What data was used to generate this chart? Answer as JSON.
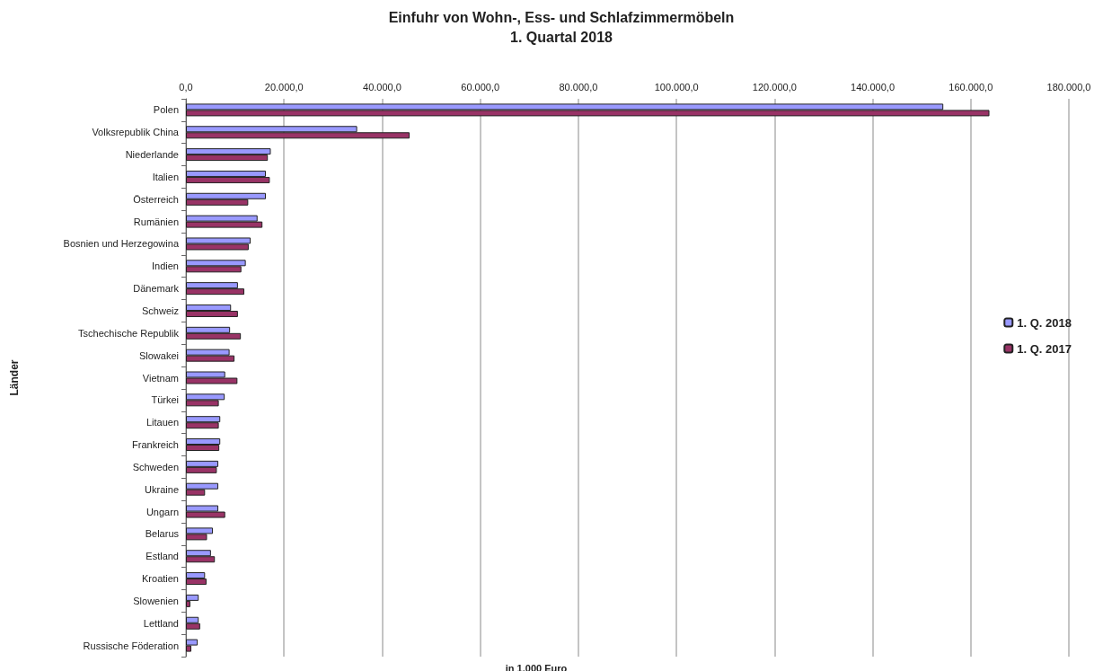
{
  "chart_data": {
    "type": "bar",
    "orientation": "horizontal",
    "title": "Einfuhr von Wohn-, Ess- und Schlafzimmermöbeln",
    "subtitle": "1. Quartal 2018",
    "xlabel": "in 1.000 Euro",
    "ylabel": "Länder",
    "categories": [
      "Polen",
      "Volksrepublik China",
      "Niederlande",
      "Italien",
      "Österreich",
      "Rumänien",
      "Bosnien und Herzegowina",
      "Indien",
      "Dänemark",
      "Schweiz",
      "Tschechische Republik",
      "Slowakei",
      "Vietnam",
      "Türkei",
      "Litauen",
      "Frankreich",
      "Schweden",
      "Ukraine",
      "Ungarn",
      "Belarus",
      "Estland",
      "Kroatien",
      "Slowenien",
      "Lettland",
      "Russische Föderation"
    ],
    "series": [
      {
        "name": "1. Q. 2018",
        "color": "#9999ff",
        "values": [
          154400,
          34900,
          17300,
          16300,
          16300,
          14600,
          13200,
          12200,
          10600,
          9200,
          9000,
          8900,
          8000,
          7900,
          7000,
          7000,
          6600,
          6600,
          6600,
          5500,
          5100,
          3900,
          2600,
          2600,
          2400
        ]
      },
      {
        "name": "1. Q. 2017",
        "color": "#993366",
        "values": [
          163800,
          45600,
          16700,
          17100,
          12700,
          15600,
          12800,
          11300,
          11900,
          10600,
          11200,
          9900,
          10500,
          6700,
          6700,
          6800,
          6300,
          3900,
          8000,
          4300,
          5900,
          4200,
          900,
          2900,
          1100
        ]
      }
    ],
    "xlim": [
      0,
      180000
    ],
    "xticks": [
      {
        "value": 0,
        "label": "0,0"
      },
      {
        "value": 20000,
        "label": "20.000,0"
      },
      {
        "value": 40000,
        "label": "40.000,0"
      },
      {
        "value": 60000,
        "label": "60.000,0"
      },
      {
        "value": 80000,
        "label": "80.000,0"
      },
      {
        "value": 100000,
        "label": "100.000,0"
      },
      {
        "value": 120000,
        "label": "120.000,0"
      },
      {
        "value": 140000,
        "label": "140.000,0"
      },
      {
        "value": 160000,
        "label": "160.000,0"
      },
      {
        "value": 180000,
        "label": "180.000,0"
      }
    ],
    "grid": "x",
    "legend": "right"
  }
}
